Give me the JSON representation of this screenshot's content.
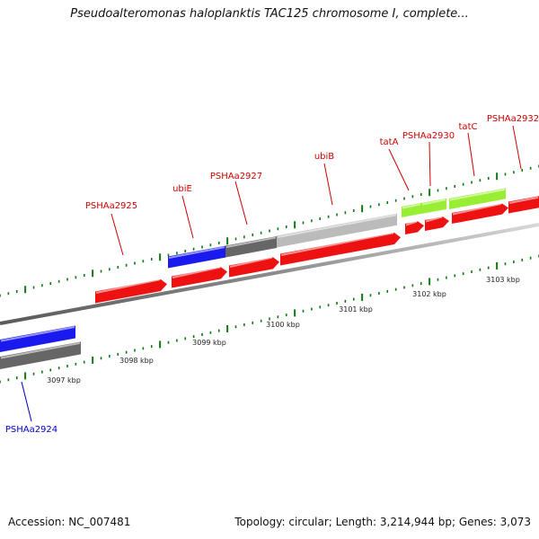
{
  "title": "Pseudoalteromonas haloplanktis TAC125 chromosome I, complete...",
  "footer": {
    "accession": "Accession: NC_007481",
    "summary": "Topology: circular; Length: 3,214,944 bp; Genes: 3,073"
  },
  "colors": {
    "cds_red": "#ee1111",
    "blue_feature": "#1a1aee",
    "dark_gray": "#666666",
    "light_gray": "#bbbbbb",
    "lime": "#99ee33",
    "tick_green": "#117711",
    "label_red": "#cc0000",
    "label_blue": "#0000cc"
  },
  "axis_ticks": [
    {
      "label": "3097 kbp"
    },
    {
      "label": "3098 kbp"
    },
    {
      "label": "3099 kbp"
    },
    {
      "label": "3100 kbp"
    },
    {
      "label": "3101 kbp"
    },
    {
      "label": "3102 kbp"
    },
    {
      "label": "3103 kbp"
    }
  ],
  "gene_labels": [
    {
      "name": "PSHAa2924",
      "color": "blue"
    },
    {
      "name": "PSHAa2925",
      "color": "red"
    },
    {
      "name": "ubiE",
      "color": "red"
    },
    {
      "name": "PSHAa2927",
      "color": "red"
    },
    {
      "name": "ubiB",
      "color": "red"
    },
    {
      "name": "tatA",
      "color": "red"
    },
    {
      "name": "PSHAa2930",
      "color": "red"
    },
    {
      "name": "tatC",
      "color": "red"
    },
    {
      "name": "PSHAa2932",
      "color": "red"
    }
  ]
}
